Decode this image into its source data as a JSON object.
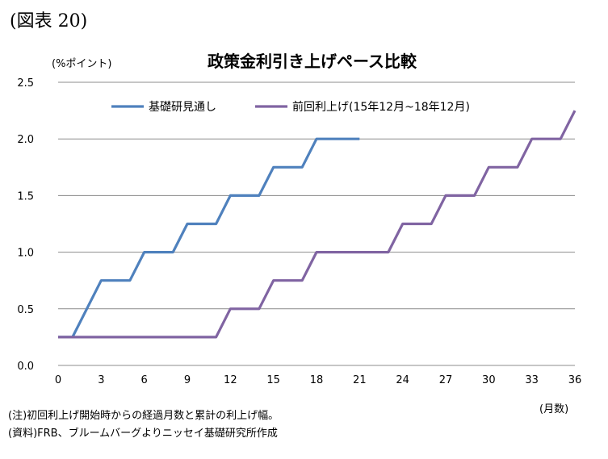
{
  "figure_label": "(図表 20)",
  "notes": {
    "note": "(注)初回利上げ開始時からの経過月数と累計の利上げ幅。",
    "source": "(資料)FRB、ブルームバーグよりニッセイ基礎研究所作成"
  },
  "chart_data": {
    "type": "line",
    "title": "政策金利引き上げペース比較",
    "ylabel": "(%ポイント)",
    "xlabel": "(月数)",
    "ylim": [
      0,
      2.5
    ],
    "xlim": [
      0,
      36
    ],
    "y_ticks": [
      "0.0",
      "0.5",
      "1.0",
      "1.5",
      "2.0",
      "2.5"
    ],
    "x_ticks": [
      "0",
      "3",
      "6",
      "9",
      "12",
      "15",
      "18",
      "21",
      "24",
      "27",
      "30",
      "33",
      "36"
    ],
    "grid": "horizontal",
    "legend_position": "top",
    "series": [
      {
        "name": "基礎研見通し",
        "color": "#4f81bd",
        "points": [
          [
            0,
            0.25
          ],
          [
            1,
            0.25
          ],
          [
            3,
            0.75
          ],
          [
            5,
            0.75
          ],
          [
            6,
            1.0
          ],
          [
            8,
            1.0
          ],
          [
            9,
            1.25
          ],
          [
            11,
            1.25
          ],
          [
            12,
            1.5
          ],
          [
            14,
            1.5
          ],
          [
            15,
            1.75
          ],
          [
            17,
            1.75
          ],
          [
            18,
            2.0
          ],
          [
            21,
            2.0
          ]
        ]
      },
      {
        "name": "前回利上げ(15年12月~18年12月)",
        "color": "#8064a2",
        "points": [
          [
            0,
            0.25
          ],
          [
            11,
            0.25
          ],
          [
            12,
            0.5
          ],
          [
            14,
            0.5
          ],
          [
            15,
            0.75
          ],
          [
            17,
            0.75
          ],
          [
            18,
            1.0
          ],
          [
            23,
            1.0
          ],
          [
            24,
            1.25
          ],
          [
            26,
            1.25
          ],
          [
            27,
            1.5
          ],
          [
            29,
            1.5
          ],
          [
            30,
            1.75
          ],
          [
            32,
            1.75
          ],
          [
            33,
            2.0
          ],
          [
            35,
            2.0
          ],
          [
            36,
            2.25
          ]
        ]
      }
    ]
  }
}
